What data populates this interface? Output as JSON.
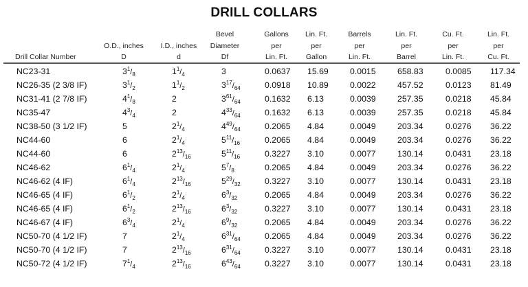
{
  "title": "DRILL COLLARS",
  "columns": [
    {
      "key": "number",
      "lines": [
        "",
        "",
        "Drill Collar Number"
      ]
    },
    {
      "key": "od",
      "lines": [
        "",
        "O.D., inches",
        "D"
      ]
    },
    {
      "key": "id",
      "lines": [
        "",
        "I.D., inches",
        "d"
      ]
    },
    {
      "key": "bevel",
      "lines": [
        "Bevel",
        "Diameter",
        "Df"
      ]
    },
    {
      "key": "gal_per_ft",
      "lines": [
        "Gallons",
        "per",
        "Lin. Ft."
      ]
    },
    {
      "key": "ft_per_gal",
      "lines": [
        "Lin. Ft.",
        "per",
        "Gallon"
      ]
    },
    {
      "key": "bbl_per_ft",
      "lines": [
        "Barrels",
        "per",
        "Lin. Ft."
      ]
    },
    {
      "key": "ft_per_bbl",
      "lines": [
        "Lin. Ft.",
        "per",
        "Barrel"
      ]
    },
    {
      "key": "cuft_per_ft",
      "lines": [
        "Cu. Ft.",
        "per",
        "Lin. Ft."
      ]
    },
    {
      "key": "ft_per_cuft",
      "lines": [
        "Lin. Ft.",
        "per",
        "Cu. Ft."
      ]
    }
  ],
  "rows": [
    {
      "number": "NC23-31",
      "od": {
        "w": "3",
        "n": "1",
        "d": "8"
      },
      "id": {
        "w": "1",
        "n": "1",
        "d": "4"
      },
      "bevel": {
        "w": "3",
        "n": "",
        "d": ""
      },
      "gal_per_ft": "0.0637",
      "ft_per_gal": "15.69",
      "bbl_per_ft": "0.0015",
      "ft_per_bbl": "658.83",
      "cuft_per_ft": "0.0085",
      "ft_per_cuft": "117.34"
    },
    {
      "number": "NC26-35 (2 3/8 IF)",
      "od": {
        "w": "3",
        "n": "1",
        "d": "2"
      },
      "id": {
        "w": "1",
        "n": "1",
        "d": "2"
      },
      "bevel": {
        "w": "3",
        "n": "17",
        "d": "64"
      },
      "gal_per_ft": "0.0918",
      "ft_per_gal": "10.89",
      "bbl_per_ft": "0.0022",
      "ft_per_bbl": "457.52",
      "cuft_per_ft": "0.0123",
      "ft_per_cuft": "81.49"
    },
    {
      "number": "NC31-41 (2 7/8 IF)",
      "od": {
        "w": "4",
        "n": "1",
        "d": "8"
      },
      "id": {
        "w": "2",
        "n": "",
        "d": ""
      },
      "bevel": {
        "w": "3",
        "n": "61",
        "d": "64"
      },
      "gal_per_ft": "0.1632",
      "ft_per_gal": "6.13",
      "bbl_per_ft": "0.0039",
      "ft_per_bbl": "257.35",
      "cuft_per_ft": "0.0218",
      "ft_per_cuft": "45.84"
    },
    {
      "number": "NC35-47",
      "od": {
        "w": "4",
        "n": "3",
        "d": "4"
      },
      "id": {
        "w": "2",
        "n": "",
        "d": ""
      },
      "bevel": {
        "w": "4",
        "n": "33",
        "d": "64"
      },
      "gal_per_ft": "0.1632",
      "ft_per_gal": "6.13",
      "bbl_per_ft": "0.0039",
      "ft_per_bbl": "257.35",
      "cuft_per_ft": "0.0218",
      "ft_per_cuft": "45.84"
    },
    {
      "number": "NC38-50 (3 1/2 IF)",
      "od": {
        "w": "5",
        "n": "",
        "d": ""
      },
      "id": {
        "w": "2",
        "n": "1",
        "d": "4"
      },
      "bevel": {
        "w": "4",
        "n": "49",
        "d": "64"
      },
      "gal_per_ft": "0.2065",
      "ft_per_gal": "4.84",
      "bbl_per_ft": "0.0049",
      "ft_per_bbl": "203.34",
      "cuft_per_ft": "0.0276",
      "ft_per_cuft": "36.22"
    },
    {
      "number": "NC44-60",
      "od": {
        "w": "6",
        "n": "",
        "d": ""
      },
      "id": {
        "w": "2",
        "n": "1",
        "d": "4"
      },
      "bevel": {
        "w": "5",
        "n": "11",
        "d": "16"
      },
      "gal_per_ft": "0.2065",
      "ft_per_gal": "4.84",
      "bbl_per_ft": "0.0049",
      "ft_per_bbl": "203.34",
      "cuft_per_ft": "0.0276",
      "ft_per_cuft": "36.22"
    },
    {
      "number": "NC44-60",
      "od": {
        "w": "6",
        "n": "",
        "d": ""
      },
      "id": {
        "w": "2",
        "n": "13",
        "d": "16"
      },
      "bevel": {
        "w": "5",
        "n": "11",
        "d": "16"
      },
      "gal_per_ft": "0.3227",
      "ft_per_gal": "3.10",
      "bbl_per_ft": "0.0077",
      "ft_per_bbl": "130.14",
      "cuft_per_ft": "0.0431",
      "ft_per_cuft": "23.18"
    },
    {
      "number": "NC46-62",
      "od": {
        "w": "6",
        "n": "1",
        "d": "4"
      },
      "id": {
        "w": "2",
        "n": "1",
        "d": "4"
      },
      "bevel": {
        "w": "5",
        "n": "7",
        "d": "8"
      },
      "gal_per_ft": "0.2065",
      "ft_per_gal": "4.84",
      "bbl_per_ft": "0.0049",
      "ft_per_bbl": "203.34",
      "cuft_per_ft": "0.0276",
      "ft_per_cuft": "36.22"
    },
    {
      "number": "NC46-62 (4 IF)",
      "od": {
        "w": "6",
        "n": "1",
        "d": "4"
      },
      "id": {
        "w": "2",
        "n": "13",
        "d": "16"
      },
      "bevel": {
        "w": "5",
        "n": "29",
        "d": "32"
      },
      "gal_per_ft": "0.3227",
      "ft_per_gal": "3.10",
      "bbl_per_ft": "0.0077",
      "ft_per_bbl": "130.14",
      "cuft_per_ft": "0.0431",
      "ft_per_cuft": "23.18"
    },
    {
      "number": "NC46-65 (4 IF)",
      "od": {
        "w": "6",
        "n": "1",
        "d": "2"
      },
      "id": {
        "w": "2",
        "n": "1",
        "d": "4"
      },
      "bevel": {
        "w": "6",
        "n": "3",
        "d": "32"
      },
      "gal_per_ft": "0.2065",
      "ft_per_gal": "4.84",
      "bbl_per_ft": "0.0049",
      "ft_per_bbl": "203.34",
      "cuft_per_ft": "0.0276",
      "ft_per_cuft": "36.22"
    },
    {
      "number": "NC46-65 (4 IF)",
      "od": {
        "w": "6",
        "n": "1",
        "d": "2"
      },
      "id": {
        "w": "2",
        "n": "13",
        "d": "16"
      },
      "bevel": {
        "w": "6",
        "n": "3",
        "d": "32"
      },
      "gal_per_ft": "0.3227",
      "ft_per_gal": "3.10",
      "bbl_per_ft": "0.0077",
      "ft_per_bbl": "130.14",
      "cuft_per_ft": "0.0431",
      "ft_per_cuft": "23.18"
    },
    {
      "number": "NC46-67 (4 IF)",
      "od": {
        "w": "6",
        "n": "3",
        "d": "4"
      },
      "id": {
        "w": "2",
        "n": "1",
        "d": "4"
      },
      "bevel": {
        "w": "6",
        "n": "9",
        "d": "32"
      },
      "gal_per_ft": "0.2065",
      "ft_per_gal": "4.84",
      "bbl_per_ft": "0.0049",
      "ft_per_bbl": "203.34",
      "cuft_per_ft": "0.0276",
      "ft_per_cuft": "36.22"
    },
    {
      "number": "NC50-70 (4 1/2 IF)",
      "od": {
        "w": "7",
        "n": "",
        "d": ""
      },
      "id": {
        "w": "2",
        "n": "1",
        "d": "4"
      },
      "bevel": {
        "w": "6",
        "n": "31",
        "d": "64"
      },
      "gal_per_ft": "0.2065",
      "ft_per_gal": "4.84",
      "bbl_per_ft": "0.0049",
      "ft_per_bbl": "203.34",
      "cuft_per_ft": "0.0276",
      "ft_per_cuft": "36.22"
    },
    {
      "number": "NC50-70 (4 1/2 IF)",
      "od": {
        "w": "7",
        "n": "",
        "d": ""
      },
      "id": {
        "w": "2",
        "n": "13",
        "d": "16"
      },
      "bevel": {
        "w": "6",
        "n": "31",
        "d": "64"
      },
      "gal_per_ft": "0.3227",
      "ft_per_gal": "3.10",
      "bbl_per_ft": "0.0077",
      "ft_per_bbl": "130.14",
      "cuft_per_ft": "0.0431",
      "ft_per_cuft": "23.18"
    },
    {
      "number": "NC50-72 (4 1/2 IF)",
      "od": {
        "w": "7",
        "n": "1",
        "d": "4"
      },
      "id": {
        "w": "2",
        "n": "13",
        "d": "16"
      },
      "bevel": {
        "w": "6",
        "n": "43",
        "d": "64"
      },
      "gal_per_ft": "0.3227",
      "ft_per_gal": "3.10",
      "bbl_per_ft": "0.0077",
      "ft_per_bbl": "130.14",
      "cuft_per_ft": "0.0431",
      "ft_per_cuft": "23.18"
    }
  ]
}
